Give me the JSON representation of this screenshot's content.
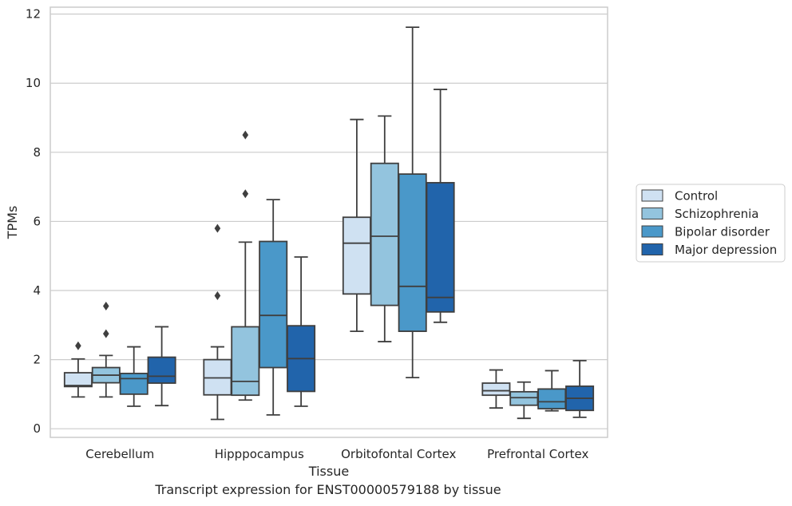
{
  "chart_data": {
    "type": "box",
    "xlabel": "Tissue",
    "ylabel": "TPMs",
    "ylim": [
      -0.25,
      12.2
    ],
    "yticks": [
      0,
      2,
      4,
      6,
      8,
      10,
      12
    ],
    "grid": "horizontal",
    "legend_position": "right",
    "categories": [
      "Cerebellum",
      "Hipppocampus",
      "Orbitofontal Cortex",
      "Prefrontal Cortex"
    ],
    "series": [
      {
        "name": "Control",
        "color": "#cfe1f2",
        "boxes": [
          {
            "whislo": 0.92,
            "q1": 1.22,
            "med": 1.25,
            "q3": 1.62,
            "whishi": 2.02,
            "fliers": [
              2.4
            ]
          },
          {
            "whislo": 0.27,
            "q1": 0.98,
            "med": 1.47,
            "q3": 2.0,
            "whishi": 2.37,
            "fliers": [
              3.85,
              5.8
            ]
          },
          {
            "whislo": 2.82,
            "q1": 3.9,
            "med": 5.37,
            "q3": 6.12,
            "whishi": 8.95,
            "fliers": []
          },
          {
            "whislo": 0.6,
            "q1": 0.97,
            "med": 1.1,
            "q3": 1.32,
            "whishi": 1.7,
            "fliers": []
          }
        ]
      },
      {
        "name": "Schizophrenia",
        "color": "#93c4de",
        "boxes": [
          {
            "whislo": 0.92,
            "q1": 1.33,
            "med": 1.55,
            "q3": 1.77,
            "whishi": 2.12,
            "fliers": [
              2.75,
              3.55
            ]
          },
          {
            "whislo": 0.83,
            "q1": 0.97,
            "med": 1.37,
            "q3": 2.95,
            "whishi": 5.4,
            "fliers": [
              6.8,
              8.5
            ]
          },
          {
            "whislo": 2.52,
            "q1": 3.57,
            "med": 5.57,
            "q3": 7.68,
            "whishi": 9.05,
            "fliers": []
          },
          {
            "whislo": 0.3,
            "q1": 0.68,
            "med": 0.9,
            "q3": 1.07,
            "whishi": 1.35,
            "fliers": []
          }
        ]
      },
      {
        "name": "Bipolar disorder",
        "color": "#4a98c9",
        "boxes": [
          {
            "whislo": 0.65,
            "q1": 1.0,
            "med": 1.45,
            "q3": 1.6,
            "whishi": 2.37,
            "fliers": []
          },
          {
            "whislo": 0.4,
            "q1": 1.77,
            "med": 3.28,
            "q3": 5.42,
            "whishi": 6.63,
            "fliers": []
          },
          {
            "whislo": 1.48,
            "q1": 2.82,
            "med": 4.12,
            "q3": 7.37,
            "whishi": 11.62,
            "fliers": []
          },
          {
            "whislo": 0.52,
            "q1": 0.58,
            "med": 0.78,
            "q3": 1.15,
            "whishi": 1.68,
            "fliers": []
          }
        ]
      },
      {
        "name": "Major depression",
        "color": "#2164ab",
        "boxes": [
          {
            "whislo": 0.67,
            "q1": 1.32,
            "med": 1.52,
            "q3": 2.07,
            "whishi": 2.95,
            "fliers": []
          },
          {
            "whislo": 0.65,
            "q1": 1.08,
            "med": 2.03,
            "q3": 2.98,
            "whishi": 4.97,
            "fliers": []
          },
          {
            "whislo": 3.08,
            "q1": 3.38,
            "med": 3.8,
            "q3": 7.12,
            "whishi": 9.82,
            "fliers": []
          },
          {
            "whislo": 0.33,
            "q1": 0.53,
            "med": 0.88,
            "q3": 1.23,
            "whishi": 1.97,
            "fliers": []
          }
        ]
      }
    ]
  },
  "caption": "Transcript expression for ENST00000579188 by tissue"
}
